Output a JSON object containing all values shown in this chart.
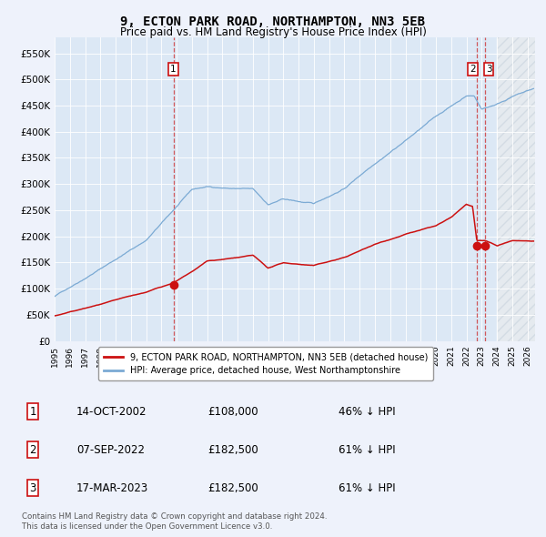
{
  "title": "9, ECTON PARK ROAD, NORTHAMPTON, NN3 5EB",
  "subtitle": "Price paid vs. HM Land Registry's House Price Index (HPI)",
  "title_fontsize": 10,
  "subtitle_fontsize": 8.5,
  "background_color": "#eef2fb",
  "plot_bg_color": "#dce8f5",
  "ylabel_ticks": [
    "£0",
    "£50K",
    "£100K",
    "£150K",
    "£200K",
    "£250K",
    "£300K",
    "£350K",
    "£400K",
    "£450K",
    "£500K",
    "£550K"
  ],
  "ytick_values": [
    0,
    50000,
    100000,
    150000,
    200000,
    250000,
    300000,
    350000,
    400000,
    450000,
    500000,
    550000
  ],
  "ylim": [
    0,
    580000
  ],
  "hpi_color": "#7baad4",
  "price_color": "#cc1111",
  "sale1": {
    "date": 2002.79,
    "price": 108000
  },
  "sale2": {
    "date": 2022.68,
    "price": 182500
  },
  "sale3": {
    "date": 2023.21,
    "price": 182500
  },
  "legend_label_red": "9, ECTON PARK ROAD, NORTHAMPTON, NN3 5EB (detached house)",
  "legend_label_blue": "HPI: Average price, detached house, West Northamptonshire",
  "table_rows": [
    {
      "num": "1",
      "date": "14-OCT-2002",
      "price": "£108,000",
      "hpi": "46% ↓ HPI"
    },
    {
      "num": "2",
      "date": "07-SEP-2022",
      "price": "£182,500",
      "hpi": "61% ↓ HPI"
    },
    {
      "num": "3",
      "date": "17-MAR-2023",
      "price": "£182,500",
      "hpi": "61% ↓ HPI"
    }
  ],
  "footer": "Contains HM Land Registry data © Crown copyright and database right 2024.\nThis data is licensed under the Open Government Licence v3.0.",
  "hatch_after_date": 2024.0,
  "xmin": 1995.0,
  "xmax": 2026.5,
  "xtick_years": [
    1995,
    1996,
    1997,
    1998,
    1999,
    2000,
    2001,
    2002,
    2003,
    2004,
    2005,
    2006,
    2007,
    2008,
    2009,
    2010,
    2011,
    2012,
    2013,
    2014,
    2015,
    2016,
    2017,
    2018,
    2019,
    2020,
    2021,
    2022,
    2023,
    2024,
    2025,
    2026
  ]
}
